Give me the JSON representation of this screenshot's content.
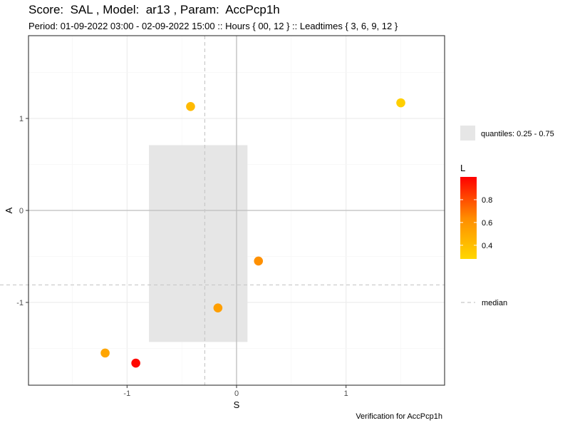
{
  "title": "Score:  SAL , Model:  ar13 , Param:  AccPcp1h",
  "subtitle": "Period: 01-09-2022 03:00 - 02-09-2022 15:00 :: Hours { 00, 12 } :: Leadtimes { 3, 6, 9, 12 }",
  "caption": "Verification for AccPcp1h",
  "colors": {
    "panel_border": "#333333",
    "grid_major": "#ebebeb",
    "grid_minor": "#f5f5f5",
    "zero_line": "#bebebe",
    "median_line": "#c8c8c8",
    "quantile_fill": "#e6e6e6",
    "color_low": "#ffd700",
    "color_mid": "#ff8c00",
    "color_high": "#ff0000"
  },
  "chart_data": {
    "type": "scatter",
    "xlabel": "S",
    "ylabel": "A",
    "xlim": [
      -1.9,
      1.9
    ],
    "ylim": [
      -1.9,
      1.9
    ],
    "x_ticks": [
      -1,
      0,
      1
    ],
    "y_ticks": [
      -1,
      0,
      1
    ],
    "x_tick_labels": [
      "-1",
      "0",
      "1"
    ],
    "y_tick_labels": [
      "-1",
      "0",
      "1"
    ],
    "grid": true,
    "zero_lines": true,
    "points": [
      {
        "S": -0.42,
        "A": 1.13,
        "L": 0.42
      },
      {
        "S": 1.5,
        "A": 1.17,
        "L": 0.32
      },
      {
        "S": 0.2,
        "A": -0.55,
        "L": 0.62
      },
      {
        "S": -0.17,
        "A": -1.06,
        "L": 0.55
      },
      {
        "S": -1.2,
        "A": -1.55,
        "L": 0.52
      },
      {
        "S": -0.92,
        "A": -1.66,
        "L": 0.98
      }
    ],
    "quantile_box": {
      "s_range": [
        -0.8,
        0.1
      ],
      "a_range": [
        -1.43,
        0.71
      ]
    },
    "median": {
      "S": -0.29,
      "A": -0.81
    },
    "color_scale": {
      "title": "L",
      "range": [
        0.28,
        1.0
      ],
      "ticks": [
        0.4,
        0.6,
        0.8
      ],
      "tick_labels": [
        "0.4",
        "0.6",
        "0.8"
      ]
    },
    "legend": {
      "quantiles_label": "quantiles: 0.25 - 0.75",
      "median_label": "median",
      "position": "right"
    }
  }
}
